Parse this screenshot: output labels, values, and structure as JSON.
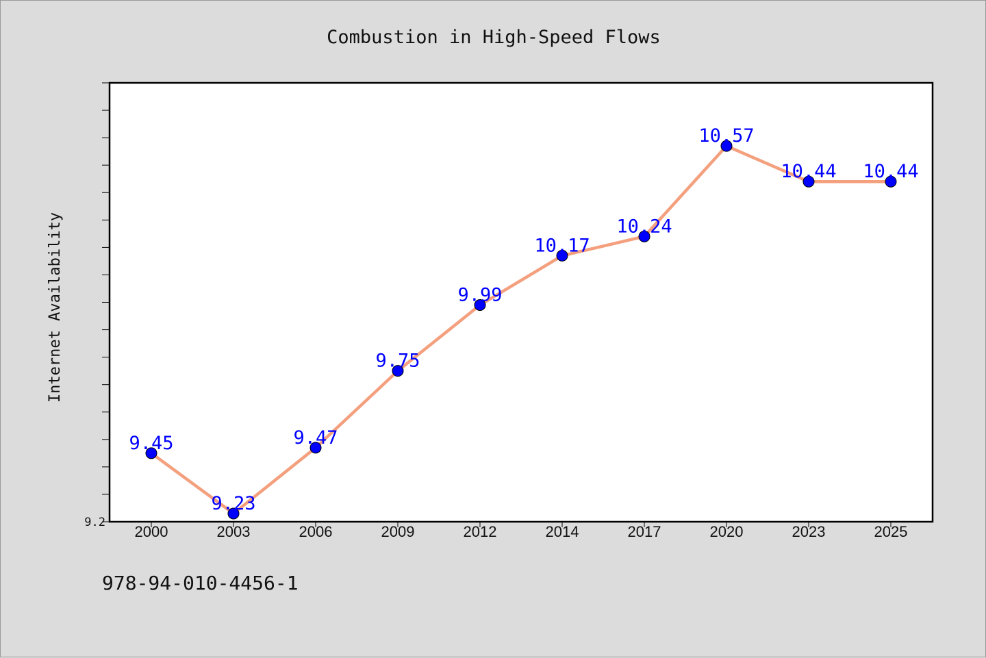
{
  "chart_data": {
    "type": "line",
    "title": "Combustion in High-Speed Flows",
    "xlabel": "",
    "ylabel": "Internet Availability",
    "categories": [
      "2000",
      "2003",
      "2006",
      "2009",
      "2012",
      "2014",
      "2017",
      "2020",
      "2023",
      "2025"
    ],
    "values": [
      9.45,
      9.23,
      9.47,
      9.75,
      9.99,
      10.17,
      10.24,
      10.57,
      10.44,
      10.44
    ],
    "data_labels": [
      "9.45",
      "9.23",
      "9.47",
      "9.75",
      "9.99",
      "10.17",
      "10.24",
      "10.57",
      "10.44",
      "10.44"
    ],
    "ylim": [
      9.2,
      10.8
    ],
    "y_tick_step": 0.1,
    "y_tick_labels": [
      "9.2"
    ],
    "grid": false,
    "line_color": "#f4a07e",
    "marker_color": "#0000ff",
    "label_color": "#0000ff"
  },
  "footer": {
    "code": "978-94-010-4456-1"
  }
}
